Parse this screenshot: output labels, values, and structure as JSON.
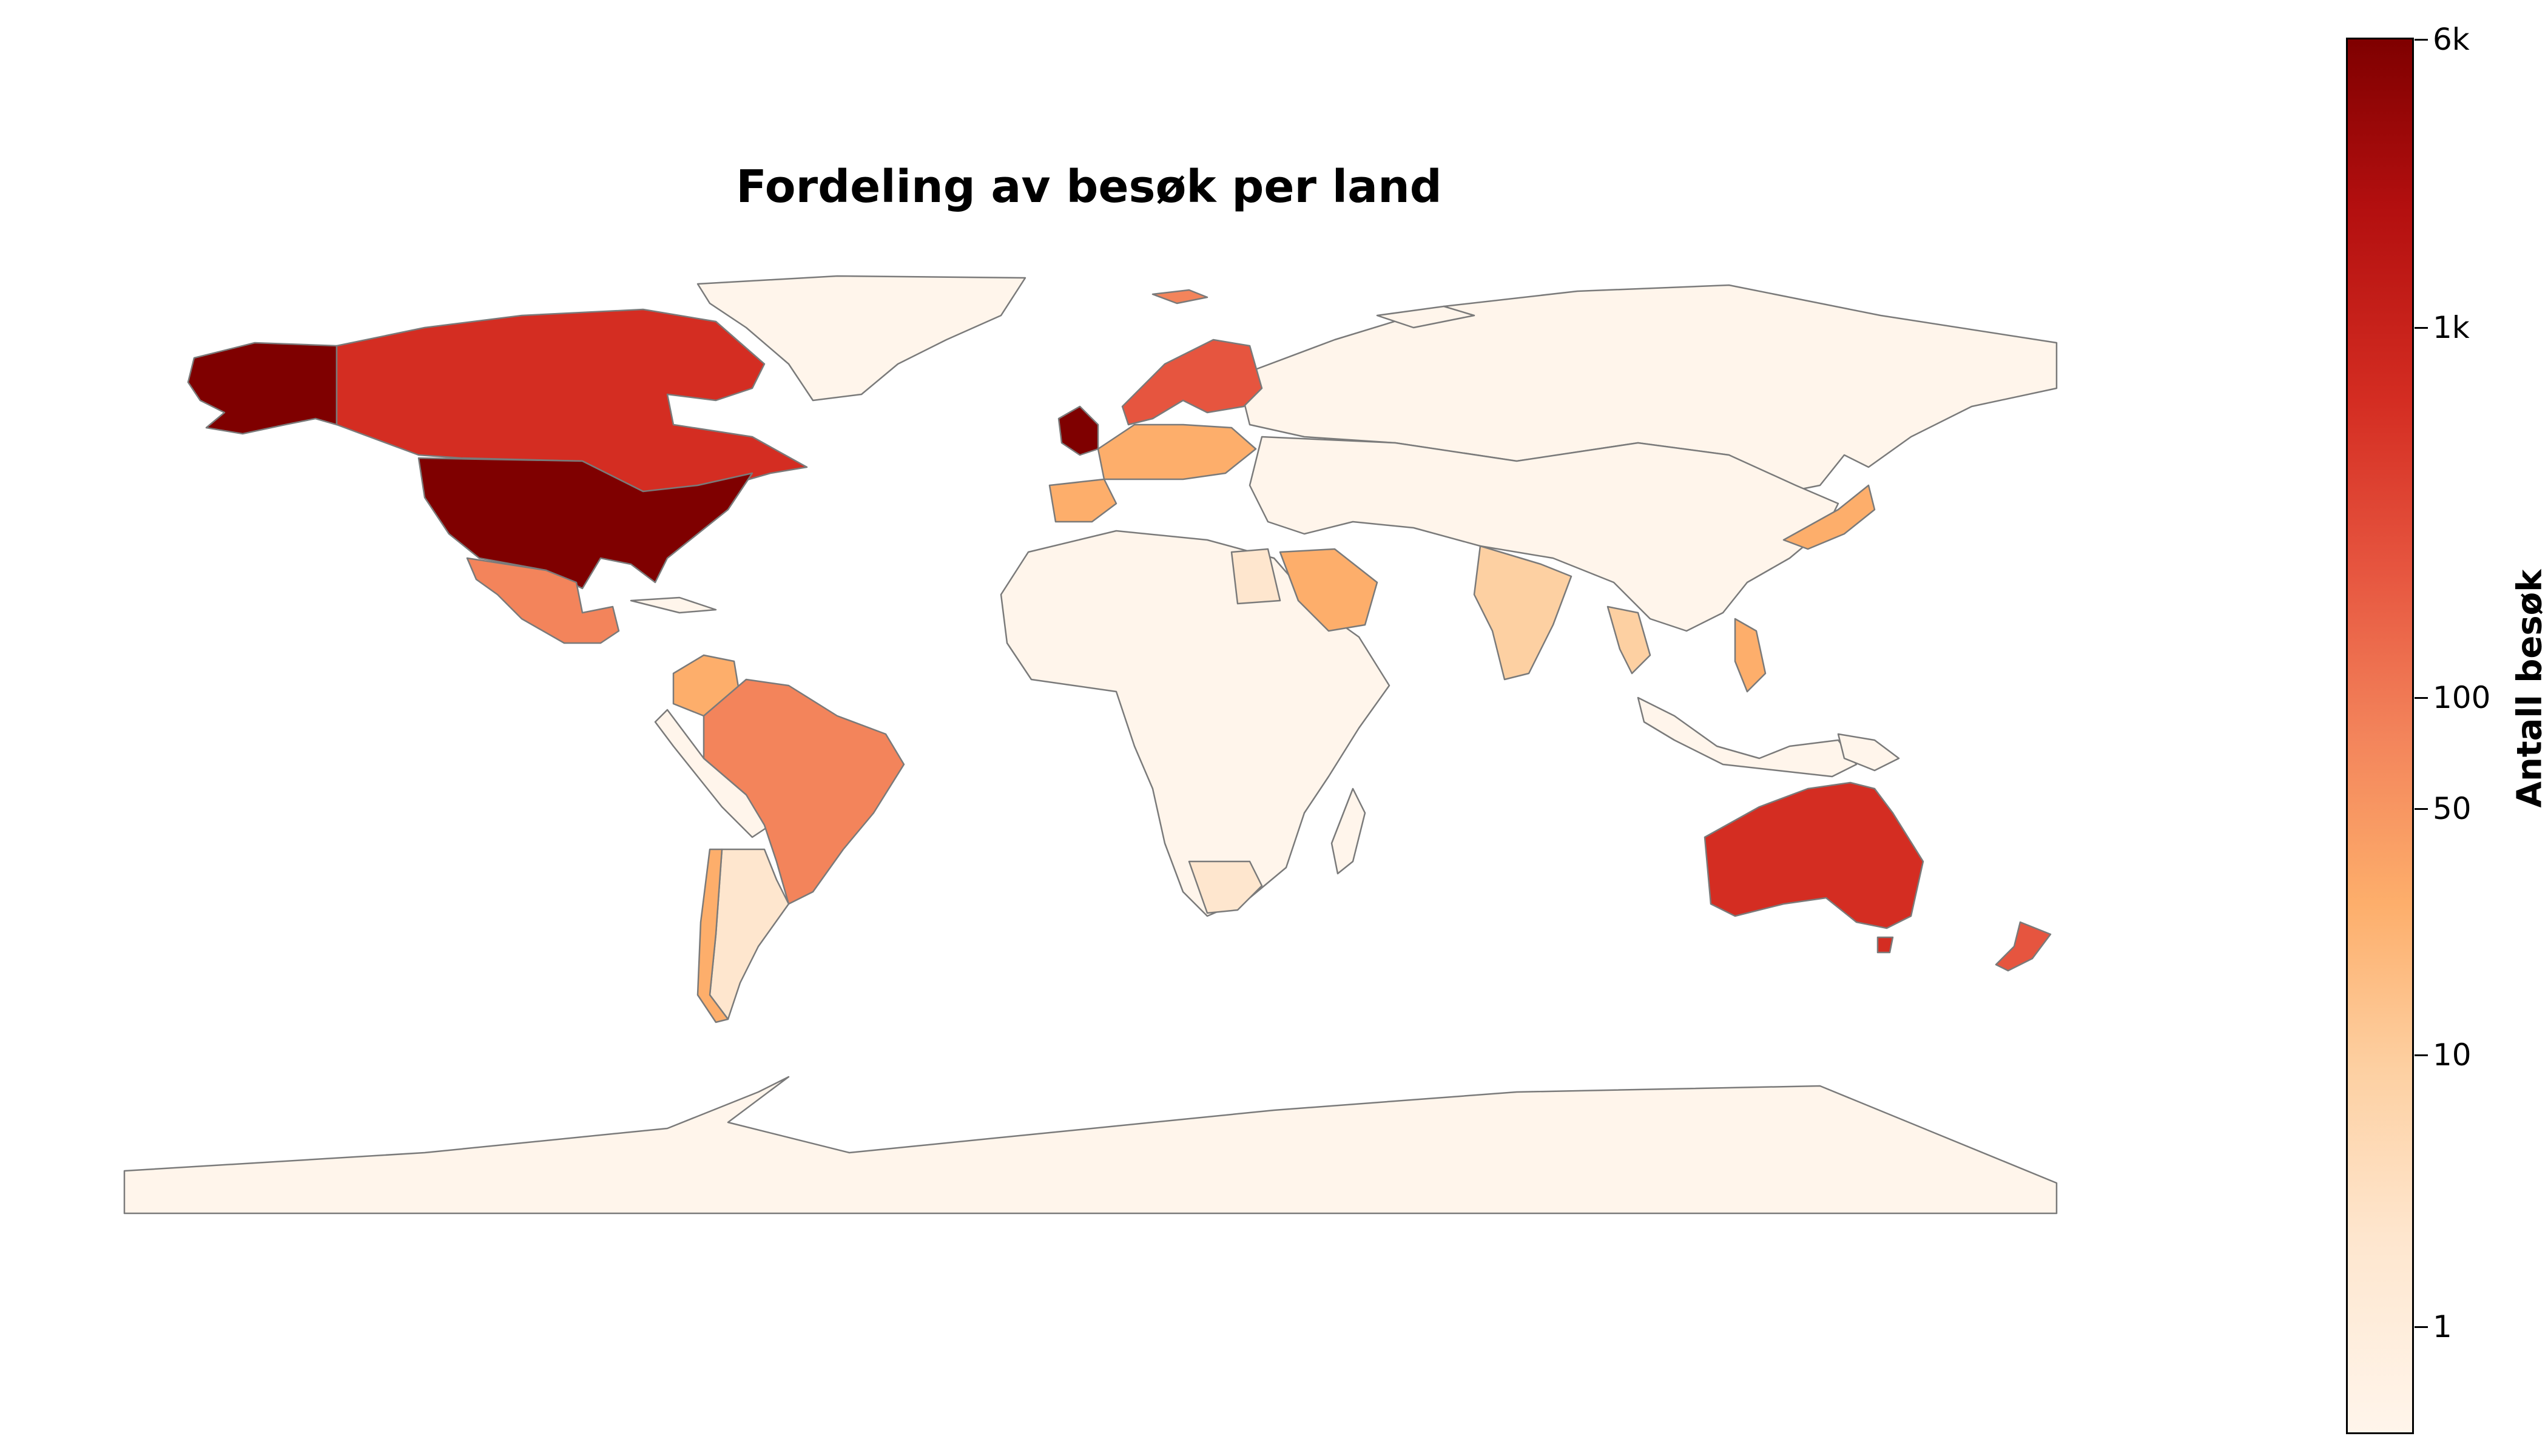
{
  "title": "Fordeling av besøk per land",
  "colorbar": {
    "label": "Antall besøk",
    "scale": "log",
    "colormap": "OrRd",
    "ticks": [
      "6k",
      "1k",
      "100",
      "50",
      "10",
      "1"
    ],
    "tick_values": [
      6000,
      1000,
      100,
      50,
      10,
      1
    ],
    "min": 0.5,
    "max": 6000,
    "colors": [
      "#fff5eb",
      "#fdd0a2",
      "#fdae6b",
      "#f3845b",
      "#e6553f",
      "#d42d22",
      "#b30f0f",
      "#7f0000"
    ]
  },
  "chart_data": {
    "type": "choropleth",
    "metric": "Antall besøk",
    "scale": "log",
    "range": [
      0.5,
      6000
    ],
    "regions": [
      {
        "id": "usa",
        "value": 6000
      },
      {
        "id": "alaska",
        "value": 6000
      },
      {
        "id": "uk",
        "value": 6000
      },
      {
        "id": "canada",
        "value": 1000
      },
      {
        "id": "australia",
        "value": 1000
      },
      {
        "id": "brazil",
        "value": 100
      },
      {
        "id": "scandinavia",
        "value": 100
      },
      {
        "id": "newzealand",
        "value": 100
      },
      {
        "id": "svalbard",
        "value": 100
      },
      {
        "id": "mexico",
        "value": 50
      },
      {
        "id": "saudi",
        "value": 40
      },
      {
        "id": "spain",
        "value": 30
      },
      {
        "id": "westeurope",
        "value": 45
      },
      {
        "id": "japan",
        "value": 25
      },
      {
        "id": "india",
        "value": 10
      },
      {
        "id": "colombia",
        "value": 20
      },
      {
        "id": "chile",
        "value": 20
      },
      {
        "id": "argentina",
        "value": 5
      },
      {
        "id": "southafrica",
        "value": 4
      },
      {
        "id": "philippines",
        "value": 20
      },
      {
        "id": "thailand",
        "value": 10
      },
      {
        "id": "egypt",
        "value": 3
      }
    ]
  }
}
